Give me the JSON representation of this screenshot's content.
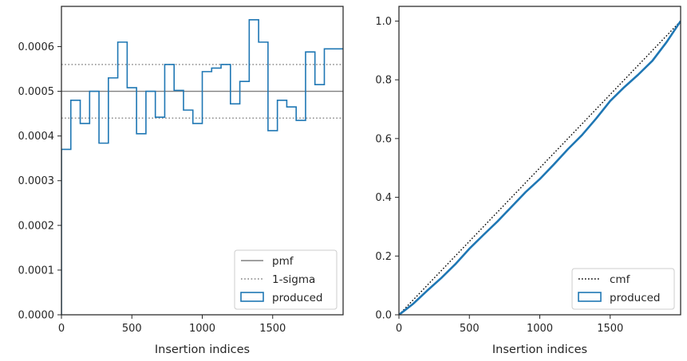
{
  "chart_data": [
    {
      "type": "step",
      "xlabel": "Insertion indices",
      "xlim": [
        0,
        2000
      ],
      "ylim": [
        0,
        0.00069
      ],
      "xticks": [
        "0",
        "500",
        "1000",
        "1500"
      ],
      "yticks": [
        "0.0000",
        "0.0001",
        "0.0002",
        "0.0003",
        "0.0004",
        "0.0005",
        "0.0006"
      ],
      "legend_position": "lower right",
      "reference_lines": [
        {
          "name": "pmf",
          "y": 0.0005,
          "style": "solid",
          "color": "#808080"
        },
        {
          "name": "1-sigma",
          "y": 0.00044,
          "style": "dotted",
          "color": "#808080"
        },
        {
          "name": "1-sigma",
          "y": 0.00056,
          "style": "dotted",
          "color": "#808080"
        }
      ],
      "legend": [
        "pmf",
        "1-sigma",
        "produced"
      ],
      "series": [
        {
          "name": "produced",
          "color": "#1f77b4",
          "bin_width": 66.67,
          "values": [
            0.00037,
            0.00048,
            0.000428,
            0.0005,
            0.000384,
            0.00053,
            0.00061,
            0.000508,
            0.000405,
            0.0005,
            0.000442,
            0.00056,
            0.000502,
            0.000458,
            0.000428,
            0.000544,
            0.000552,
            0.00056,
            0.000472,
            0.000522,
            0.00066,
            0.00061,
            0.000412,
            0.00048,
            0.000465,
            0.000435,
            0.000588,
            0.000515,
            0.000595,
            0.000595
          ]
        }
      ]
    },
    {
      "type": "line",
      "xlabel": "Insertion indices",
      "xlim": [
        0,
        2000
      ],
      "ylim": [
        0,
        1.05
      ],
      "xticks": [
        "0",
        "500",
        "1000",
        "1500"
      ],
      "yticks": [
        "0.0",
        "0.2",
        "0.4",
        "0.6",
        "0.8",
        "1.0"
      ],
      "legend_position": "lower right",
      "legend": [
        "cmf",
        "produced"
      ],
      "series": [
        {
          "name": "cmf",
          "style": "dotted",
          "color": "#000000",
          "x": [
            0,
            2000
          ],
          "y": [
            0,
            1.0
          ]
        },
        {
          "name": "produced",
          "color": "#1f77b4",
          "x": [
            0,
            100,
            200,
            300,
            400,
            500,
            600,
            700,
            800,
            900,
            1000,
            1100,
            1200,
            1300,
            1400,
            1500,
            1600,
            1700,
            1800,
            1900,
            2000
          ],
          "y": [
            0,
            0.037,
            0.082,
            0.125,
            0.172,
            0.225,
            0.272,
            0.318,
            0.368,
            0.418,
            0.462,
            0.512,
            0.564,
            0.612,
            0.668,
            0.728,
            0.775,
            0.818,
            0.865,
            0.928,
            1.0
          ]
        }
      ]
    }
  ]
}
